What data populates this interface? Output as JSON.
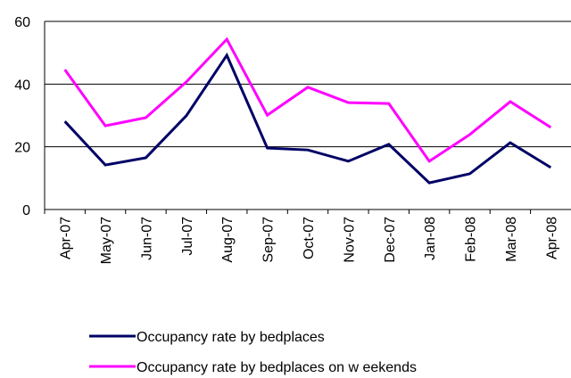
{
  "chart_data": {
    "type": "line",
    "categories": [
      "Apr-07",
      "May-07",
      "Jun-07",
      "Jul-07",
      "Aug-07",
      "Sep-07",
      "Oct-07",
      "Nov-07",
      "Dec-07",
      "Jan-08",
      "Feb-08",
      "Mar-08",
      "Apr-08"
    ],
    "series": [
      {
        "name": "Occupancy rate by bedplaces",
        "color": "#000066",
        "values": [
          28.1,
          14.2,
          16.5,
          29.9,
          49.2,
          19.6,
          19,
          15.4,
          20.8,
          8.5,
          11.4,
          21.3,
          13.4
        ]
      },
      {
        "name": "Occupancy rate by bedplaces on w eekends",
        "color": "#ff00ff",
        "values": [
          44.6,
          26.7,
          29.3,
          40.7,
          54.3,
          30.1,
          39,
          34.1,
          33.8,
          15.4,
          23.9,
          34.4,
          26.2
        ]
      }
    ],
    "ylim": [
      0,
      60
    ],
    "yticks": [
      0,
      20,
      40,
      60
    ],
    "grid": true
  }
}
